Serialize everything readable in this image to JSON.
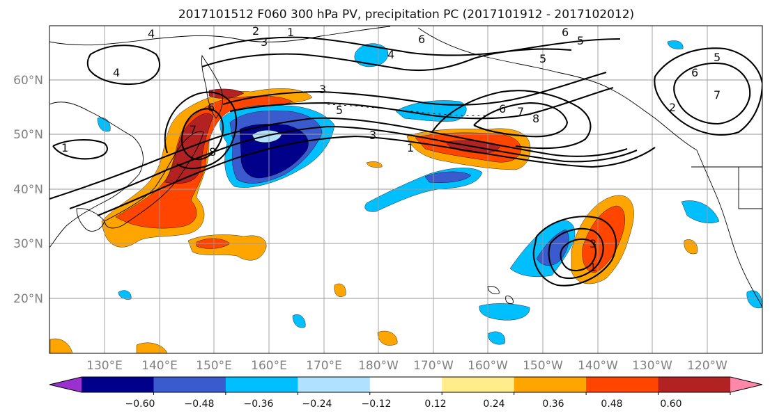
{
  "title": "2017101512 F060 300 hPa PV, precipitation PC (2017101912 - 2017102012)",
  "lat_labels": [
    "60°N",
    "50°N",
    "40°N",
    "30°N",
    "20°N"
  ],
  "lon_labels": [
    "130°E",
    "140°E",
    "150°E",
    "160°E",
    "170°E",
    "180°W",
    "170°W",
    "160°W",
    "150°W",
    "140°W",
    "130°W",
    "120°W"
  ],
  "colorbar": {
    "ticks": [
      "−0.60",
      "−0.48",
      "−0.36",
      "−0.24",
      "−0.12",
      "0.12",
      "0.24",
      "0.36",
      "0.48",
      "0.60"
    ],
    "colors": [
      "#9b30d0",
      "#00008b",
      "#3a5bcd",
      "#00bfff",
      "#b0e2ff",
      "#ffffff",
      "#ffec8b",
      "#ffa500",
      "#ff4500",
      "#b22222",
      "#ff88aa"
    ]
  },
  "pv_contour_labels": [
    "4",
    "2",
    "1",
    "3",
    "6",
    "5",
    "4",
    "4",
    "5",
    "6",
    "5",
    "7",
    "6",
    "1",
    "3",
    "5",
    "3",
    "6",
    "7",
    "8",
    "1",
    "8",
    "7",
    "6",
    "2",
    "3",
    "1"
  ]
}
